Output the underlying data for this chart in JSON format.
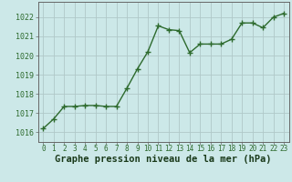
{
  "x": [
    0,
    1,
    2,
    3,
    4,
    5,
    6,
    7,
    8,
    9,
    10,
    11,
    12,
    13,
    14,
    15,
    16,
    17,
    18,
    19,
    20,
    21,
    22,
    23
  ],
  "y": [
    1016.2,
    1016.7,
    1017.35,
    1017.35,
    1017.4,
    1017.4,
    1017.35,
    1017.35,
    1018.3,
    1019.3,
    1020.2,
    1021.55,
    1021.35,
    1021.3,
    1020.15,
    1020.6,
    1020.6,
    1020.6,
    1020.85,
    1021.7,
    1021.7,
    1021.45,
    1022.0,
    1022.2
  ],
  "line_color": "#2d6a2d",
  "marker": "+",
  "marker_size": 4,
  "line_width": 1.0,
  "bg_color": "#cce8e8",
  "grid_color": "#b0c8c8",
  "xlabel": "Graphe pression niveau de la mer (hPa)",
  "xlabel_fontsize": 7.5,
  "xlabel_color": "#1a3a1a",
  "ytick_labels": [
    "1016",
    "1017",
    "1018",
    "1019",
    "1020",
    "1021",
    "1022"
  ],
  "ytick_vals": [
    1016,
    1017,
    1018,
    1019,
    1020,
    1021,
    1022
  ],
  "xtick_vals": [
    0,
    1,
    2,
    3,
    4,
    5,
    6,
    7,
    8,
    9,
    10,
    11,
    12,
    13,
    14,
    15,
    16,
    17,
    18,
    19,
    20,
    21,
    22,
    23
  ],
  "ylim": [
    1015.5,
    1022.8
  ],
  "xlim": [
    -0.5,
    23.5
  ],
  "tick_fontsize": 5.5,
  "ytick_fontsize": 6.0
}
